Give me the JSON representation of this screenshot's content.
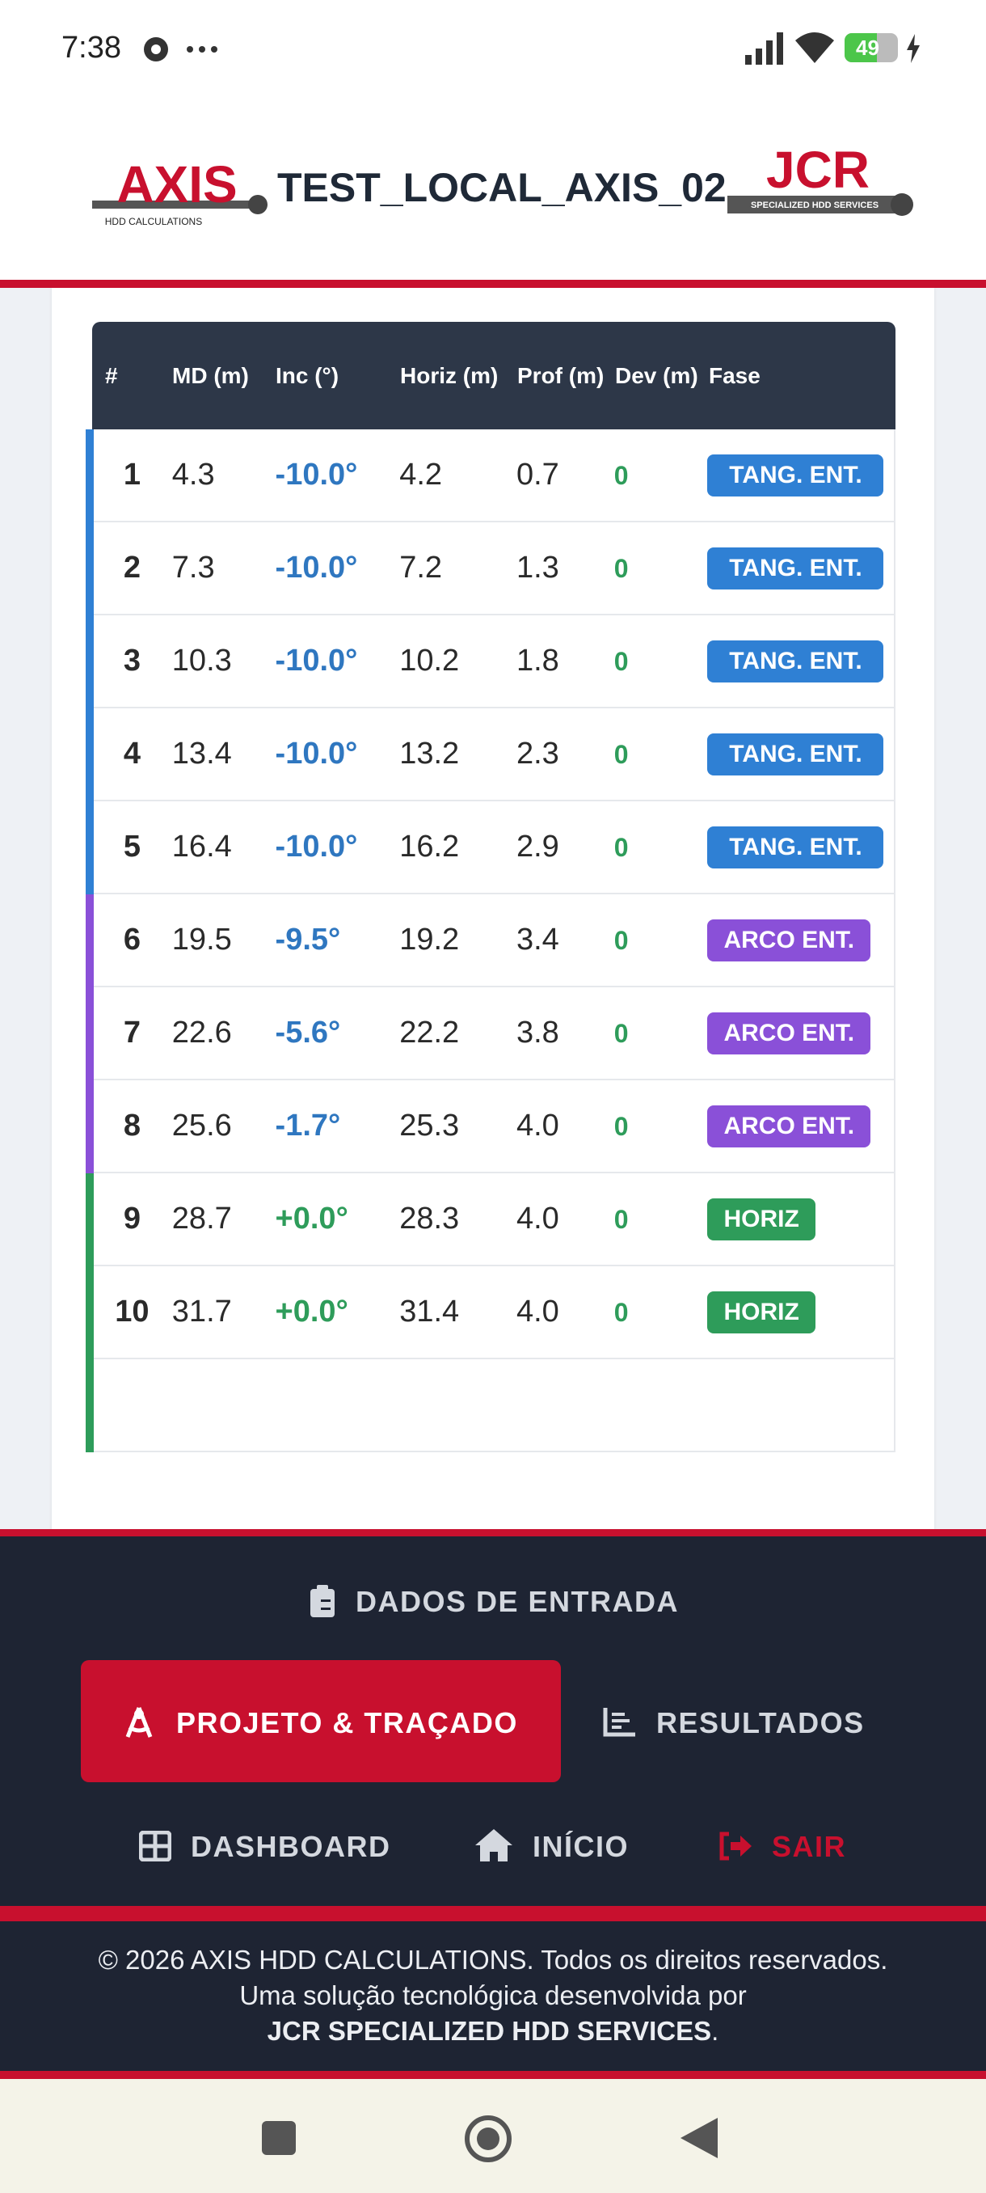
{
  "status_bar": {
    "time": "7:38",
    "battery": "49"
  },
  "header": {
    "logo_left": {
      "name": "AXIS",
      "tagline": "HDD CALCULATIONS"
    },
    "title": "TEST_LOCAL_AXIS_02",
    "logo_right": {
      "name": "JCR",
      "tagline": "SPECIALIZED HDD SERVICES"
    }
  },
  "table": {
    "columns": [
      "#",
      "MD (m)",
      "Inc (°)",
      "Horiz (m)",
      "Prof (m)",
      "Dev (m)",
      "Fase"
    ],
    "rows": [
      {
        "cells": [
          "1",
          "4.3",
          "-10.0°",
          "4.2",
          "0.7",
          "0",
          "TANG. ENT."
        ],
        "color": "#2f80d4",
        "inc_color": "#2f77c0"
      },
      {
        "cells": [
          "2",
          "7.3",
          "-10.0°",
          "7.2",
          "1.3",
          "0",
          "TANG. ENT."
        ],
        "color": "#2f80d4",
        "inc_color": "#2f77c0"
      },
      {
        "cells": [
          "3",
          "10.3",
          "-10.0°",
          "10.2",
          "1.8",
          "0",
          "TANG. ENT."
        ],
        "color": "#2f80d4",
        "inc_color": "#2f77c0"
      },
      {
        "cells": [
          "4",
          "13.4",
          "-10.0°",
          "13.2",
          "2.3",
          "0",
          "TANG. ENT."
        ],
        "color": "#2f80d4",
        "inc_color": "#2f77c0"
      },
      {
        "cells": [
          "5",
          "16.4",
          "-10.0°",
          "16.2",
          "2.9",
          "0",
          "TANG. ENT."
        ],
        "color": "#2f80d4",
        "inc_color": "#2f77c0"
      },
      {
        "cells": [
          "6",
          "19.5",
          "-9.5°",
          "19.2",
          "3.4",
          "0",
          "ARCO ENT."
        ],
        "color": "#8a50d8",
        "inc_color": "#2f77c0"
      },
      {
        "cells": [
          "7",
          "22.6",
          "-5.6°",
          "22.2",
          "3.8",
          "0",
          "ARCO ENT."
        ],
        "color": "#8a50d8",
        "inc_color": "#2f77c0"
      },
      {
        "cells": [
          "8",
          "25.6",
          "-1.7°",
          "25.3",
          "4.0",
          "0",
          "ARCO ENT."
        ],
        "color": "#8a50d8",
        "inc_color": "#2f77c0"
      },
      {
        "cells": [
          "9",
          "28.7",
          "+0.0°",
          "28.3",
          "4.0",
          "0",
          "HORIZ"
        ],
        "color": "#2e9c5a",
        "inc_color": "#2e9c5a"
      },
      {
        "cells": [
          "10",
          "31.7",
          "+0.0°",
          "31.4",
          "4.0",
          "0",
          "HORIZ"
        ],
        "color": "#2e9c5a",
        "inc_color": "#2e9c5a"
      }
    ]
  },
  "nav": {
    "dados": "DADOS DE ENTRADA",
    "projeto": "PROJETO & TRAÇADO",
    "resultados": "RESULTADOS",
    "dashboard": "DASHBOARD",
    "inicio": "INÍCIO",
    "sair": "SAIR"
  },
  "footer": {
    "line1": "© 2026 AXIS HDD CALCULATIONS. Todos os direitos reservados.",
    "line2": "Uma solução tecnológica desenvolvida por",
    "company": "JCR SPECIALIZED HDD SERVICES",
    "end": "."
  }
}
